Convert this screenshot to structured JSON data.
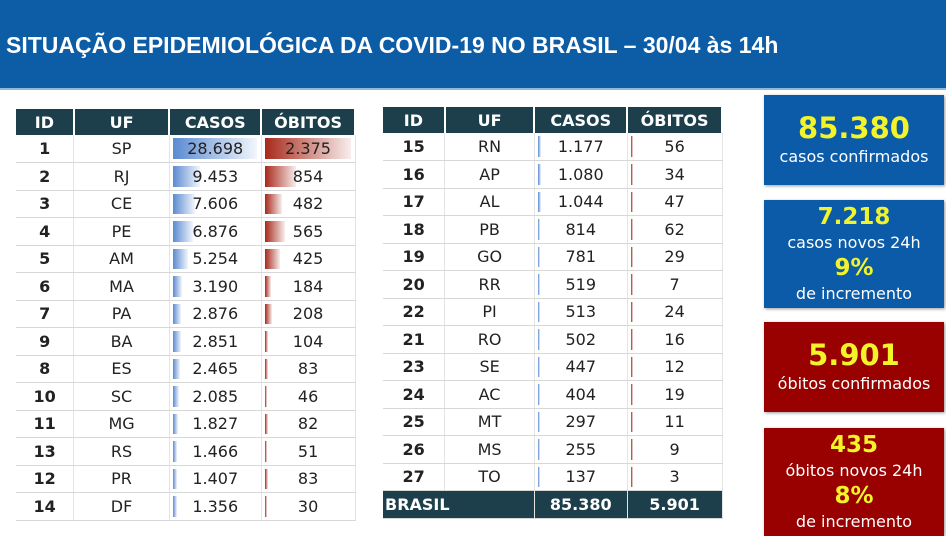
{
  "title": "SITUAÇÃO EPIDEMIOLÓGICA DA COVID-19 NO BRASIL – 30/04 às 14h",
  "columns": [
    "ID",
    "UF",
    "CASOS",
    "ÓBITOS"
  ],
  "max_casos": 28698,
  "max_obitos": 2375,
  "left_rows": [
    [
      "1",
      "SP",
      "28.698",
      "2.375",
      28698,
      2375
    ],
    [
      "2",
      "RJ",
      "9.453",
      "854",
      9453,
      854
    ],
    [
      "3",
      "CE",
      "7.606",
      "482",
      7606,
      482
    ],
    [
      "4",
      "PE",
      "6.876",
      "565",
      6876,
      565
    ],
    [
      "5",
      "AM",
      "5.254",
      "425",
      5254,
      425
    ],
    [
      "6",
      "MA",
      "3.190",
      "184",
      3190,
      184
    ],
    [
      "7",
      "PA",
      "2.876",
      "208",
      2876,
      208
    ],
    [
      "9",
      "BA",
      "2.851",
      "104",
      2851,
      104
    ],
    [
      "8",
      "ES",
      "2.465",
      "83",
      2465,
      83
    ],
    [
      "10",
      "SC",
      "2.085",
      "46",
      2085,
      46
    ],
    [
      "11",
      "MG",
      "1.827",
      "82",
      1827,
      82
    ],
    [
      "13",
      "RS",
      "1.466",
      "51",
      1466,
      51
    ],
    [
      "12",
      "PR",
      "1.407",
      "83",
      1407,
      83
    ],
    [
      "14",
      "DF",
      "1.356",
      "30",
      1356,
      30
    ]
  ],
  "right_rows": [
    [
      "15",
      "RN",
      "1.177",
      "56",
      1177,
      56
    ],
    [
      "16",
      "AP",
      "1.080",
      "34",
      1080,
      34
    ],
    [
      "17",
      "AL",
      "1.044",
      "47",
      1044,
      47
    ],
    [
      "18",
      "PB",
      "814",
      "62",
      814,
      62
    ],
    [
      "19",
      "GO",
      "781",
      "29",
      781,
      29
    ],
    [
      "20",
      "RR",
      "519",
      "7",
      519,
      7
    ],
    [
      "22",
      "PI",
      "513",
      "24",
      513,
      24
    ],
    [
      "21",
      "RO",
      "502",
      "16",
      502,
      16
    ],
    [
      "23",
      "SE",
      "447",
      "12",
      447,
      12
    ],
    [
      "24",
      "AC",
      "404",
      "19",
      404,
      19
    ],
    [
      "25",
      "MT",
      "297",
      "11",
      297,
      11
    ],
    [
      "26",
      "MS",
      "255",
      "9",
      255,
      9
    ],
    [
      "27",
      "TO",
      "137",
      "3",
      137,
      3
    ]
  ],
  "total": {
    "label": "BRASIL",
    "casos": "85.380",
    "obitos": "5.901"
  },
  "cards": {
    "casos": {
      "value": "85.380",
      "label": "casos confirmados"
    },
    "novos_casos": {
      "value": "7.218",
      "label": "casos novos 24h",
      "pct": "9%",
      "pct_label": "de incremento"
    },
    "obitos": {
      "value": "5.901",
      "label": "óbitos confirmados"
    },
    "novos_obitos": {
      "value": "435",
      "label": "óbitos novos 24h",
      "pct": "8%",
      "pct_label": "de incremento"
    }
  }
}
